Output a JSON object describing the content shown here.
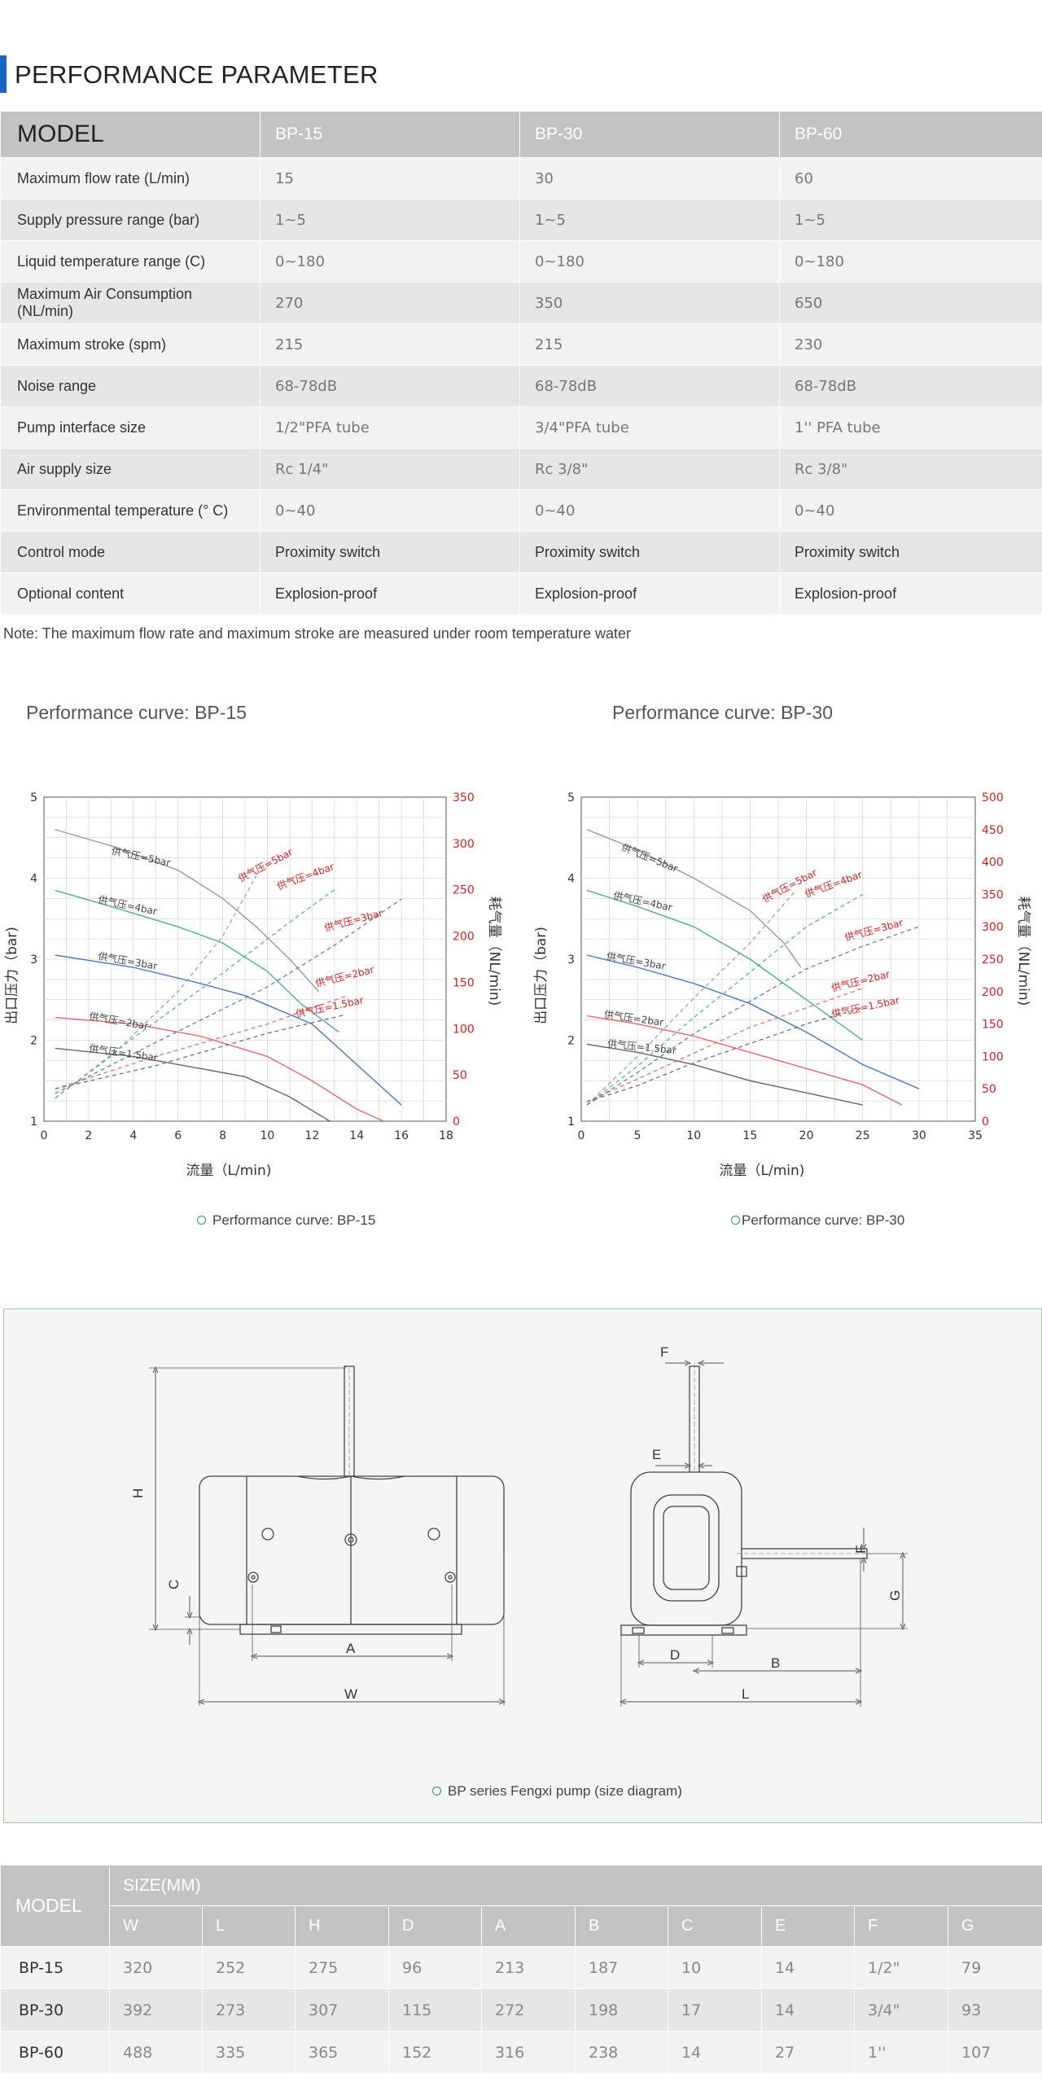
{
  "section_title": "PERFORMANCE PARAMETER",
  "performance_table": {
    "header": [
      "MODEL",
      "BP-15",
      "BP-30",
      "BP-60"
    ],
    "rows": [
      [
        "Maximum flow rate (L/min)",
        "15",
        "30",
        "60"
      ],
      [
        "Supply pressure range (bar)",
        "1~5",
        "1~5",
        "1~5"
      ],
      [
        "Liquid temperature range (C)",
        "0~180",
        "0~180",
        "0~180"
      ],
      [
        "Maximum Air Consumption (NL/min)",
        "270",
        "350",
        "650"
      ],
      [
        "Maximum stroke (spm)",
        "215",
        "215",
        "230"
      ],
      [
        "Noise range",
        "68-78dB",
        "68-78dB",
        "68-78dB"
      ],
      [
        "Pump interface size",
        "1/2\"PFA tube",
        "3/4\"PFA tube",
        "1'' PFA tube"
      ],
      [
        "Air supply size",
        "Rc 1/4\"",
        "Rc 3/8\"",
        "Rc 3/8\""
      ],
      [
        "Environmental temperature (°  C)",
        "0~40",
        "0~40",
        "0~40"
      ],
      [
        "Control mode",
        "Proximity switch",
        "Proximity switch",
        "Proximity switch"
      ],
      [
        "Optional content",
        "Explosion-proof",
        "Explosion-proof",
        "Explosion-proof"
      ]
    ]
  },
  "note": "Note: The maximum flow rate and maximum stroke are measured under room temperature water",
  "chart_data": [
    {
      "type": "line",
      "title": "Performance curve: BP-15",
      "caption": "Performance curve: BP-15",
      "xlabel": "流量（L/min)",
      "ylabel_left": "出口压力（bar)",
      "ylabel_right": "耗气量（NL/min)",
      "xlim": [
        0,
        18
      ],
      "ylim_left": [
        1,
        5
      ],
      "ylim_right": [
        0,
        350
      ],
      "x_ticks": [
        "0",
        "2",
        "4",
        "6",
        "8",
        "10",
        "12",
        "14",
        "16",
        "18"
      ],
      "y_left_ticks": [
        "1",
        "2",
        "3",
        "4",
        "5"
      ],
      "y_right_ticks": [
        "0",
        "50",
        "100",
        "150",
        "200",
        "250",
        "300",
        "350"
      ],
      "grid": true,
      "colors": {
        "5bar": "#9a9a9a",
        "4bar": "#4fb08e",
        "3bar": "#4a78c2",
        "2bar": "#e36a6a",
        "1.5bar": "#666666",
        "consumption_label": "#d42020"
      },
      "series": [
        {
          "name": "供气压=5bar",
          "color_key": "5bar",
          "points": [
            [
              0.5,
              4.6
            ],
            [
              3,
              4.4
            ],
            [
              6,
              4.1
            ],
            [
              8,
              3.75
            ],
            [
              9.5,
              3.4
            ],
            [
              11,
              3.0
            ],
            [
              12.3,
              2.6
            ]
          ]
        },
        {
          "name": "供气压=4bar",
          "color_key": "4bar",
          "points": [
            [
              0.5,
              3.85
            ],
            [
              3,
              3.65
            ],
            [
              6,
              3.4
            ],
            [
              8,
              3.2
            ],
            [
              10,
              2.85
            ],
            [
              11.5,
              2.45
            ],
            [
              13.2,
              2.1
            ]
          ]
        },
        {
          "name": "供气压=3bar",
          "color_key": "3bar",
          "points": [
            [
              0.5,
              3.05
            ],
            [
              4,
              2.9
            ],
            [
              7,
              2.7
            ],
            [
              9,
              2.55
            ],
            [
              12,
              2.2
            ],
            [
              14,
              1.7
            ],
            [
              16,
              1.2
            ]
          ]
        },
        {
          "name": "供气压=2bar",
          "color_key": "2bar",
          "points": [
            [
              0.5,
              2.28
            ],
            [
              4,
              2.2
            ],
            [
              7,
              2.05
            ],
            [
              10,
              1.8
            ],
            [
              12,
              1.5
            ],
            [
              14,
              1.15
            ],
            [
              15.2,
              1.0
            ]
          ]
        },
        {
          "name": "供气压=1.5bar",
          "color_key": "1.5bar",
          "points": [
            [
              0.5,
              1.9
            ],
            [
              4,
              1.8
            ],
            [
              7,
              1.65
            ],
            [
              9,
              1.55
            ],
            [
              11,
              1.3
            ],
            [
              12.8,
              1.0
            ]
          ]
        }
      ],
      "consumption_series": [
        {
          "name": "供气压=5bar",
          "color_key": "5bar",
          "points": [
            [
              0.5,
              25
            ],
            [
              3,
              70
            ],
            [
              6,
              140
            ],
            [
              8,
              200
            ],
            [
              9.5,
              265
            ]
          ]
        },
        {
          "name": "供气压=4bar",
          "color_key": "4bar",
          "points": [
            [
              0.5,
              25
            ],
            [
              4,
              90
            ],
            [
              8,
              160
            ],
            [
              11,
              215
            ],
            [
              13,
              250
            ]
          ]
        },
        {
          "name": "供气压=3bar",
          "color_key": "3bar",
          "points": [
            [
              0.5,
              30
            ],
            [
              5,
              85
            ],
            [
              10,
              145
            ],
            [
              13,
              190
            ],
            [
              16,
              240
            ]
          ]
        },
        {
          "name": "供气压=2bar",
          "color_key": "2bar",
          "points": [
            [
              0.5,
              35
            ],
            [
              5,
              70
            ],
            [
              10,
              105
            ],
            [
              13.5,
              135
            ]
          ]
        },
        {
          "name": "供气压=1.5bar",
          "color_key": "1.5bar",
          "points": [
            [
              0.5,
              35
            ],
            [
              5,
              60
            ],
            [
              10,
              95
            ],
            [
              13.5,
              115
            ]
          ]
        }
      ],
      "curve_labels": [
        {
          "text": "供气压=5bar",
          "x": 3,
          "y": 4.3,
          "color_key": "5bar",
          "rotate": 12
        },
        {
          "text": "供气压=4bar",
          "x": 2.4,
          "y": 3.7,
          "color_key": "5bar",
          "rotate": 12
        },
        {
          "text": "供气压=3bar",
          "x": 2.4,
          "y": 3.0,
          "color_key": "5bar",
          "rotate": 10
        },
        {
          "text": "供气压=2bar",
          "x": 2.0,
          "y": 2.26,
          "color_key": "5bar",
          "rotate": 10
        },
        {
          "text": "供气压=1.5bar",
          "x": 2.0,
          "y": 1.86,
          "color_key": "5bar",
          "rotate": 8
        },
        {
          "text": "供气压=5bar",
          "x": 8.8,
          "y_right": 258,
          "color_key": "consumption_label",
          "rotate": -28
        },
        {
          "text": "供气压=4bar",
          "x": 10.5,
          "y_right": 250,
          "color_key": "consumption_label",
          "rotate": -20
        },
        {
          "text": "供气压=3bar",
          "x": 12.6,
          "y_right": 205,
          "color_key": "consumption_label",
          "rotate": -15
        },
        {
          "text": "供气压=2bar",
          "x": 12.2,
          "y_right": 145,
          "color_key": "consumption_label",
          "rotate": -14
        },
        {
          "text": "供气压=1.5bar",
          "x": 11.3,
          "y_right": 112,
          "color_key": "consumption_label",
          "rotate": -12
        }
      ]
    },
    {
      "type": "line",
      "title": "Performance curve: BP-30",
      "caption": "Performance curve: BP-30",
      "xlabel": "流量（L/min)",
      "ylabel_left": "出口压力（bar)",
      "ylabel_right": "耗气量（NL/min)",
      "xlim": [
        0,
        35
      ],
      "ylim_left": [
        1,
        5
      ],
      "ylim_right": [
        0,
        500
      ],
      "x_ticks": [
        "0",
        "5",
        "10",
        "15",
        "20",
        "25",
        "30",
        "35"
      ],
      "y_left_ticks": [
        "1",
        "2",
        "3",
        "4",
        "5"
      ],
      "y_right_ticks": [
        "0",
        "50",
        "100",
        "150",
        "200",
        "250",
        "300",
        "350",
        "400",
        "450",
        "500"
      ],
      "grid": true,
      "colors": {
        "5bar": "#9a9a9a",
        "4bar": "#4fb08e",
        "3bar": "#4a78c2",
        "2bar": "#e36a6a",
        "1.5bar": "#666666",
        "consumption_label": "#d42020"
      },
      "series": [
        {
          "name": "供气压=5bar",
          "color_key": "5bar",
          "points": [
            [
              0.5,
              4.6
            ],
            [
              5,
              4.35
            ],
            [
              10,
              4.0
            ],
            [
              15,
              3.6
            ],
            [
              18,
              3.2
            ],
            [
              19.5,
              2.9
            ]
          ]
        },
        {
          "name": "供气压=4bar",
          "color_key": "4bar",
          "points": [
            [
              0.5,
              3.85
            ],
            [
              5,
              3.65
            ],
            [
              10,
              3.4
            ],
            [
              15,
              3.0
            ],
            [
              20,
              2.5
            ],
            [
              25,
              2.0
            ]
          ]
        },
        {
          "name": "供气压=3bar",
          "color_key": "3bar",
          "points": [
            [
              0.5,
              3.05
            ],
            [
              5,
              2.9
            ],
            [
              10,
              2.7
            ],
            [
              15,
              2.45
            ],
            [
              20,
              2.1
            ],
            [
              25,
              1.7
            ],
            [
              30,
              1.4
            ]
          ]
        },
        {
          "name": "供气压=2bar",
          "color_key": "2bar",
          "points": [
            [
              0.5,
              2.3
            ],
            [
              5,
              2.2
            ],
            [
              10,
              2.05
            ],
            [
              15,
              1.85
            ],
            [
              20,
              1.65
            ],
            [
              25,
              1.45
            ],
            [
              28.5,
              1.2
            ]
          ]
        },
        {
          "name": "供气压=1.5bar",
          "color_key": "1.5bar",
          "points": [
            [
              0.5,
              1.95
            ],
            [
              5,
              1.85
            ],
            [
              10,
              1.7
            ],
            [
              15,
              1.5
            ],
            [
              20,
              1.35
            ],
            [
              25,
              1.2
            ]
          ]
        }
      ],
      "consumption_series": [
        {
          "name": "供气压=5bar",
          "color_key": "5bar",
          "points": [
            [
              0.5,
              25
            ],
            [
              5,
              100
            ],
            [
              10,
              190
            ],
            [
              15,
              275
            ],
            [
              19,
              355
            ]
          ]
        },
        {
          "name": "供气压=4bar",
          "color_key": "4bar",
          "points": [
            [
              0.5,
              25
            ],
            [
              5,
              85
            ],
            [
              10,
              160
            ],
            [
              15,
              230
            ],
            [
              20,
              300
            ],
            [
              25,
              350
            ]
          ]
        },
        {
          "name": "供气压=3bar",
          "color_key": "3bar",
          "points": [
            [
              0.5,
              25
            ],
            [
              5,
              75
            ],
            [
              10,
              135
            ],
            [
              15,
              185
            ],
            [
              20,
              235
            ],
            [
              25,
              270
            ],
            [
              30,
              300
            ]
          ]
        },
        {
          "name": "供气压=2bar",
          "color_key": "2bar",
          "points": [
            [
              0.5,
              30
            ],
            [
              5,
              65
            ],
            [
              10,
              105
            ],
            [
              15,
              145
            ],
            [
              20,
              175
            ],
            [
              25,
              205
            ]
          ]
        },
        {
          "name": "供气压=1.5bar",
          "color_key": "1.5bar",
          "points": [
            [
              0.5,
              30
            ],
            [
              5,
              55
            ],
            [
              10,
              90
            ],
            [
              15,
              120
            ],
            [
              20,
              150
            ],
            [
              25,
              175
            ]
          ]
        }
      ],
      "curve_labels": [
        {
          "text": "供气压=5bar",
          "x": 3.5,
          "y": 4.35,
          "color_key": "5bar",
          "rotate": 22
        },
        {
          "text": "供气压=4bar",
          "x": 2.8,
          "y": 3.75,
          "color_key": "5bar",
          "rotate": 12
        },
        {
          "text": "供气压=3bar",
          "x": 2.2,
          "y": 3.0,
          "color_key": "5bar",
          "rotate": 10
        },
        {
          "text": "供气压=2bar",
          "x": 2.0,
          "y": 2.28,
          "color_key": "5bar",
          "rotate": 8
        },
        {
          "text": "供气压=1.5bar",
          "x": 2.3,
          "y": 1.92,
          "color_key": "5bar",
          "rotate": 6
        },
        {
          "text": "供气压=5bar",
          "x": 16.3,
          "y_right": 337,
          "color_key": "consumption_label",
          "rotate": -28
        },
        {
          "text": "供气压=4bar",
          "x": 20.0,
          "y_right": 345,
          "color_key": "consumption_label",
          "rotate": -20
        },
        {
          "text": "供气压=3bar",
          "x": 23.5,
          "y_right": 278,
          "color_key": "consumption_label",
          "rotate": -15
        },
        {
          "text": "供气压=2bar",
          "x": 22.3,
          "y_right": 200,
          "color_key": "consumption_label",
          "rotate": -14
        },
        {
          "text": "供气压=1.5bar",
          "x": 22.3,
          "y_right": 160,
          "color_key": "consumption_label",
          "rotate": -12
        }
      ]
    }
  ],
  "diagram": {
    "caption": "BP series Fengxi pump (size diagram)",
    "labels": {
      "H": "H",
      "C": "C",
      "A": "A",
      "W": "W",
      "F": "F",
      "E": "E",
      "D": "D",
      "B": "B",
      "L": "L",
      "G": "G"
    }
  },
  "size_table": {
    "model_label": "MODEL",
    "group_label": "SIZE(MM)",
    "columns": [
      "W",
      "L",
      "H",
      "D",
      "A",
      "B",
      "C",
      "E",
      "F",
      "G"
    ],
    "rows": [
      {
        "model": "BP-15",
        "values": [
          "320",
          "252",
          "275",
          "96",
          "213",
          "187",
          "10",
          "14",
          "1/2\"",
          "79"
        ]
      },
      {
        "model": "BP-30",
        "values": [
          "392",
          "273",
          "307",
          "115",
          "272",
          "198",
          "17",
          "14",
          "3/4\"",
          "93"
        ]
      },
      {
        "model": "BP-60",
        "values": [
          "488",
          "335",
          "365",
          "152",
          "316",
          "238",
          "14",
          "27",
          "1''",
          "107"
        ]
      }
    ]
  }
}
